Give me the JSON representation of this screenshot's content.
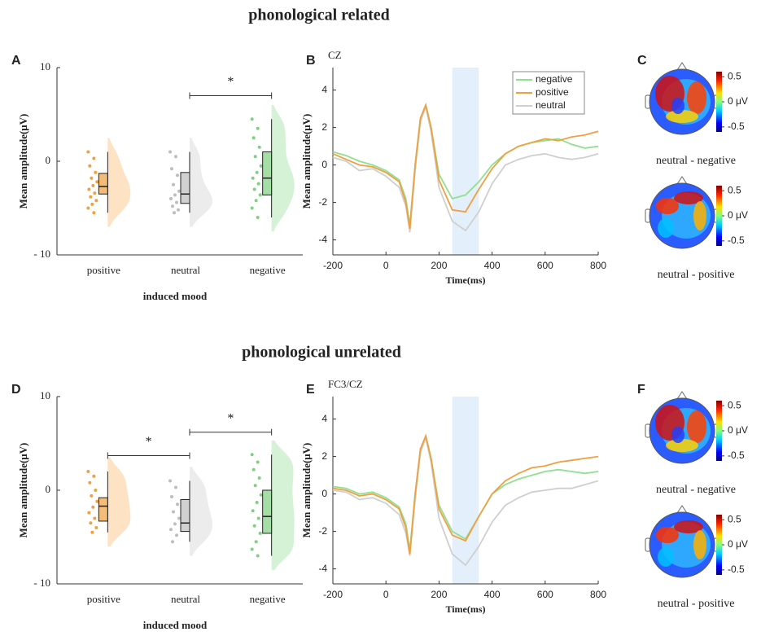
{
  "headings": [
    "phonological related",
    "phonological unrelated"
  ],
  "chart_data": [
    {
      "type": "raincloud",
      "panel": "A",
      "ylabel": "Mean amplitude(μV)",
      "xlabel": "induced mood",
      "categories": [
        "positive",
        "neutral",
        "negative"
      ],
      "colors": [
        "#f0a040",
        "#bdbdbd",
        "#7fd07f"
      ],
      "ylim": [
        -10,
        10
      ],
      "yticks": [
        {
          "value": -10,
          "label": "- 10"
        },
        0,
        10
      ],
      "points": [
        [
          1,
          0.3,
          -0.5,
          -1.2,
          -1.8,
          -2.2,
          -2.6,
          -3,
          -3.4,
          -3.8,
          -4.2,
          -4.6,
          -5,
          -5.5
        ],
        [
          1,
          0.5,
          -0.8,
          -1.5,
          -2.5,
          -3.2,
          -3.6,
          -4,
          -4.4,
          -4.8,
          -5.2,
          -5.5
        ],
        [
          4.5,
          3.5,
          2.5,
          1.5,
          0.5,
          -0.5,
          -1.2,
          -1.8,
          -2.4,
          -3,
          -3.6,
          -4.2,
          -5,
          -6
        ]
      ],
      "boxes": [
        {
          "whislo": -5.5,
          "q1": -3.5,
          "med": -2.7,
          "q3": -1.3,
          "whishi": 1
        },
        {
          "whislo": -5.5,
          "q1": -4.5,
          "med": -3.5,
          "q3": -1.2,
          "whishi": 1
        },
        {
          "whislo": -6,
          "q1": -3.6,
          "med": -1.8,
          "q3": 1,
          "whishi": 4.5
        }
      ],
      "significance": [
        {
          "from": 1,
          "to": 2,
          "y": 7,
          "label": "*"
        }
      ]
    },
    {
      "type": "line",
      "panel": "B",
      "channel": "CZ",
      "xlabel": "Time(ms)",
      "ylabel": "Mean amplitude(μV)",
      "xlim": [
        -200,
        800
      ],
      "xticks": [
        -200,
        0,
        200,
        400,
        600,
        800
      ],
      "ylim": [
        -4.8,
        5.2
      ],
      "yticks": [
        -4,
        -2,
        0,
        2,
        4
      ],
      "shade": [
        250,
        350
      ],
      "legend": "upper right",
      "x": [
        -200,
        -150,
        -100,
        -50,
        0,
        50,
        75,
        90,
        110,
        130,
        150,
        170,
        200,
        250,
        300,
        350,
        400,
        450,
        500,
        550,
        600,
        650,
        700,
        750,
        800
      ],
      "series": [
        {
          "name": "negative",
          "color": "#8fe08f",
          "values": [
            0.7,
            0.5,
            0.2,
            0,
            -0.3,
            -0.8,
            -1.8,
            -3.2,
            0,
            2.5,
            3.2,
            2,
            -0.5,
            -1.8,
            -1.6,
            -0.9,
            0,
            0.6,
            1,
            1.2,
            1.3,
            1.4,
            1.1,
            0.9,
            1
          ]
        },
        {
          "name": "positive",
          "color": "#f0a040",
          "values": [
            0.6,
            0.3,
            0,
            -0.1,
            -0.4,
            -0.9,
            -2,
            -3.4,
            0,
            2.5,
            3.2,
            2,
            -0.8,
            -2.4,
            -2.5,
            -1.3,
            -0.2,
            0.6,
            1,
            1.2,
            1.4,
            1.3,
            1.5,
            1.6,
            1.8
          ]
        },
        {
          "name": "neutral",
          "color": "#cfcfcf",
          "values": [
            0.4,
            0.2,
            -0.3,
            -0.2,
            -0.6,
            -1.2,
            -2.2,
            -3.6,
            -0.3,
            2.3,
            3.1,
            1.8,
            -1.2,
            -3,
            -3.5,
            -2.5,
            -1,
            0,
            0.3,
            0.5,
            0.6,
            0.4,
            0.3,
            0.4,
            0.6
          ]
        }
      ]
    },
    {
      "type": "topomap",
      "panel": "C",
      "maps": [
        {
          "caption": "neutral  - negative",
          "clim": [
            -0.6,
            0.6
          ],
          "cticks": [
            0.5,
            {
              "value": 0,
              "label": "0 μV"
            },
            -0.5
          ]
        },
        {
          "caption": "neutral  - positive",
          "clim": [
            -0.6,
            0.6
          ],
          "cticks": [
            0.5,
            {
              "value": 0,
              "label": "0 μV"
            },
            -0.5
          ]
        }
      ]
    },
    {
      "type": "raincloud",
      "panel": "D",
      "ylabel": "Mean amplitude(μV)",
      "xlabel": "induced mood",
      "categories": [
        "positive",
        "neutral",
        "negative"
      ],
      "colors": [
        "#f0a040",
        "#bdbdbd",
        "#7fd07f"
      ],
      "ylim": [
        -10,
        10
      ],
      "yticks": [
        {
          "value": -10,
          "label": "- 10"
        },
        0,
        10
      ],
      "points": [
        [
          2,
          1.5,
          0.8,
          0,
          -0.6,
          -1.2,
          -1.8,
          -2.4,
          -3,
          -3.5,
          -4,
          -4.5
        ],
        [
          1,
          0.3,
          -0.7,
          -1.5,
          -2.3,
          -3,
          -3.6,
          -4.2,
          -4.8,
          -5.5
        ],
        [
          3.8,
          3,
          2.2,
          1.3,
          0.5,
          -0.5,
          -1.3,
          -2.2,
          -3,
          -3.8,
          -4.6,
          -5.5,
          -6.3,
          -7
        ]
      ],
      "boxes": [
        {
          "whislo": -4.5,
          "q1": -3.3,
          "med": -1.7,
          "q3": -0.8,
          "whishi": 2
        },
        {
          "whislo": -5.5,
          "q1": -4.4,
          "med": -3.5,
          "q3": -1,
          "whishi": 1
        },
        {
          "whislo": -7,
          "q1": -4.6,
          "med": -2.8,
          "q3": 0,
          "whishi": 3.8
        }
      ],
      "significance": [
        {
          "from": 0,
          "to": 1,
          "y": 3.7,
          "label": "*"
        },
        {
          "from": 1,
          "to": 2,
          "y": 6.2,
          "label": "*"
        }
      ]
    },
    {
      "type": "line",
      "panel": "E",
      "channel": "FC3/CZ",
      "xlabel": "Time(ms)",
      "ylabel": "Mean amplitude(μV)",
      "xlim": [
        -200,
        800
      ],
      "xticks": [
        -200,
        0,
        200,
        400,
        600,
        800
      ],
      "ylim": [
        -4.8,
        5.2
      ],
      "yticks": [
        -4,
        -2,
        0,
        2,
        4
      ],
      "shade": [
        250,
        350
      ],
      "x": [
        -200,
        -150,
        -100,
        -50,
        0,
        50,
        75,
        90,
        110,
        130,
        150,
        170,
        200,
        250,
        300,
        350,
        400,
        450,
        500,
        550,
        600,
        650,
        700,
        750,
        800
      ],
      "series": [
        {
          "name": "negative",
          "color": "#8fe08f",
          "values": [
            0.4,
            0.3,
            0,
            0.1,
            -0.2,
            -0.7,
            -1.6,
            -3,
            0,
            2.4,
            3.1,
            1.9,
            -0.6,
            -2,
            -2.4,
            -1.2,
            0,
            0.5,
            0.8,
            1,
            1.2,
            1.3,
            1.2,
            1.1,
            1.2
          ]
        },
        {
          "name": "positive",
          "color": "#f0a040",
          "values": [
            0.3,
            0.2,
            -0.1,
            0,
            -0.3,
            -0.8,
            -1.8,
            -3.2,
            0,
            2.4,
            3.1,
            1.9,
            -0.8,
            -2.2,
            -2.5,
            -1.2,
            0,
            0.7,
            1.1,
            1.4,
            1.5,
            1.7,
            1.8,
            1.9,
            2
          ]
        },
        {
          "name": "neutral",
          "color": "#cfcfcf",
          "values": [
            0.2,
            0.1,
            -0.3,
            -0.2,
            -0.5,
            -1.1,
            -2.1,
            -3.3,
            -0.3,
            2.2,
            3,
            1.7,
            -1.3,
            -3.2,
            -3.8,
            -2.8,
            -1.5,
            -0.6,
            -0.2,
            0.1,
            0.2,
            0.3,
            0.3,
            0.5,
            0.7
          ]
        }
      ]
    },
    {
      "type": "topomap",
      "panel": "F",
      "maps": [
        {
          "caption": "neutral  - negative",
          "clim": [
            -0.6,
            0.6
          ],
          "cticks": [
            0.5,
            {
              "value": 0,
              "label": "0 μV"
            },
            -0.5
          ]
        },
        {
          "caption": "neutral  - positive",
          "clim": [
            -0.6,
            0.6
          ],
          "cticks": [
            0.5,
            {
              "value": 0,
              "label": "0 μV"
            },
            -0.5
          ]
        }
      ]
    }
  ]
}
